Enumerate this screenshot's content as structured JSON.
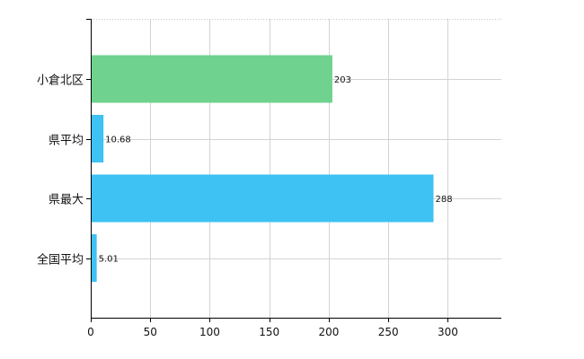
{
  "chart_data": {
    "type": "bar",
    "orientation": "horizontal",
    "categories": [
      "小倉北区",
      "県平均",
      "県最大",
      "全国平均"
    ],
    "values": [
      203,
      10.68,
      288,
      5.01
    ],
    "data_labels": [
      "203",
      "10.68",
      "288",
      "5.01"
    ],
    "bar_colors": [
      "#6fd28e",
      "#3ec1f3",
      "#3ec1f3",
      "#3ec1f3"
    ],
    "xlim": [
      0,
      345
    ],
    "x_ticks": [
      0,
      50,
      100,
      150,
      200,
      250,
      300
    ],
    "x_tick_labels": [
      "0",
      "50",
      "100",
      "150",
      "200",
      "250",
      "300"
    ],
    "grid": true,
    "title": "",
    "xlabel": "",
    "ylabel": ""
  }
}
